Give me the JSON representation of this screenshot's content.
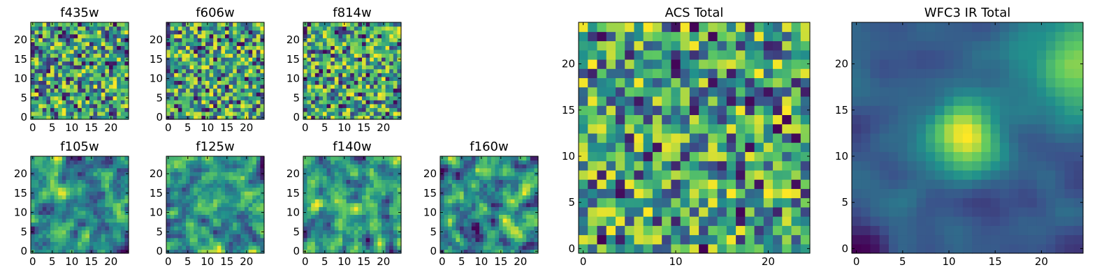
{
  "figure": {
    "colormap": "viridis",
    "colors": [
      "#440154",
      "#3b528b",
      "#21918c",
      "#5ec962",
      "#fde725"
    ]
  },
  "chart_data": [
    {
      "id": "f435w",
      "type": "heatmap",
      "title": "f435w",
      "grid_size": 25,
      "x_ticks": [
        0,
        5,
        10,
        15,
        20
      ],
      "y_ticks": [
        0,
        5,
        10,
        15,
        20
      ],
      "pattern": "noise",
      "seed": 11,
      "smooth": 0
    },
    {
      "id": "f606w",
      "type": "heatmap",
      "title": "f606w",
      "grid_size": 25,
      "x_ticks": [
        0,
        5,
        10,
        15,
        20
      ],
      "y_ticks": [
        0,
        5,
        10,
        15,
        20
      ],
      "pattern": "noise",
      "seed": 23,
      "smooth": 0
    },
    {
      "id": "f814w",
      "type": "heatmap",
      "title": "f814w",
      "grid_size": 25,
      "x_ticks": [
        0,
        5,
        10,
        15,
        20
      ],
      "y_ticks": [
        0,
        5,
        10,
        15,
        20
      ],
      "pattern": "noise",
      "seed": 37,
      "smooth": 0
    },
    {
      "id": "f105w",
      "type": "heatmap",
      "title": "f105w",
      "grid_size": 25,
      "x_ticks": [
        0,
        5,
        10,
        15,
        20
      ],
      "y_ticks": [
        0,
        5,
        10,
        15,
        20
      ],
      "pattern": "smooth_noise",
      "seed": 41,
      "smooth": 1
    },
    {
      "id": "f125w",
      "type": "heatmap",
      "title": "f125w",
      "grid_size": 25,
      "x_ticks": [
        0,
        5,
        10,
        15,
        20
      ],
      "y_ticks": [
        0,
        5,
        10,
        15,
        20
      ],
      "pattern": "smooth_noise",
      "seed": 53,
      "smooth": 1
    },
    {
      "id": "f140w",
      "type": "heatmap",
      "title": "f140w",
      "grid_size": 25,
      "x_ticks": [
        0,
        5,
        10,
        15,
        20
      ],
      "y_ticks": [
        0,
        5,
        10,
        15,
        20
      ],
      "pattern": "smooth_noise",
      "seed": 67,
      "smooth": 1
    },
    {
      "id": "f160w",
      "type": "heatmap",
      "title": "f160w",
      "grid_size": 25,
      "x_ticks": [
        0,
        5,
        10,
        15,
        20
      ],
      "y_ticks": [
        0,
        5,
        10,
        15,
        20
      ],
      "pattern": "smooth_noise",
      "seed": 79,
      "smooth": 1
    },
    {
      "id": "acs_total",
      "type": "heatmap",
      "title": "ACS Total",
      "grid_size": 25,
      "x_ticks": [
        0,
        10,
        20
      ],
      "y_ticks": [
        0,
        5,
        10,
        15,
        20
      ],
      "pattern": "noise",
      "seed": 97,
      "smooth": 0
    },
    {
      "id": "wfc3_ir_total",
      "type": "heatmap",
      "title": "WFC3 IR Total",
      "grid_size": 25,
      "x_ticks": [
        0,
        5,
        10,
        15,
        20
      ],
      "y_ticks": [
        0,
        5,
        10,
        15,
        20
      ],
      "pattern": "source_blob",
      "seed": 131,
      "smooth": 2,
      "source_center": [
        11.5,
        12.0
      ]
    }
  ]
}
